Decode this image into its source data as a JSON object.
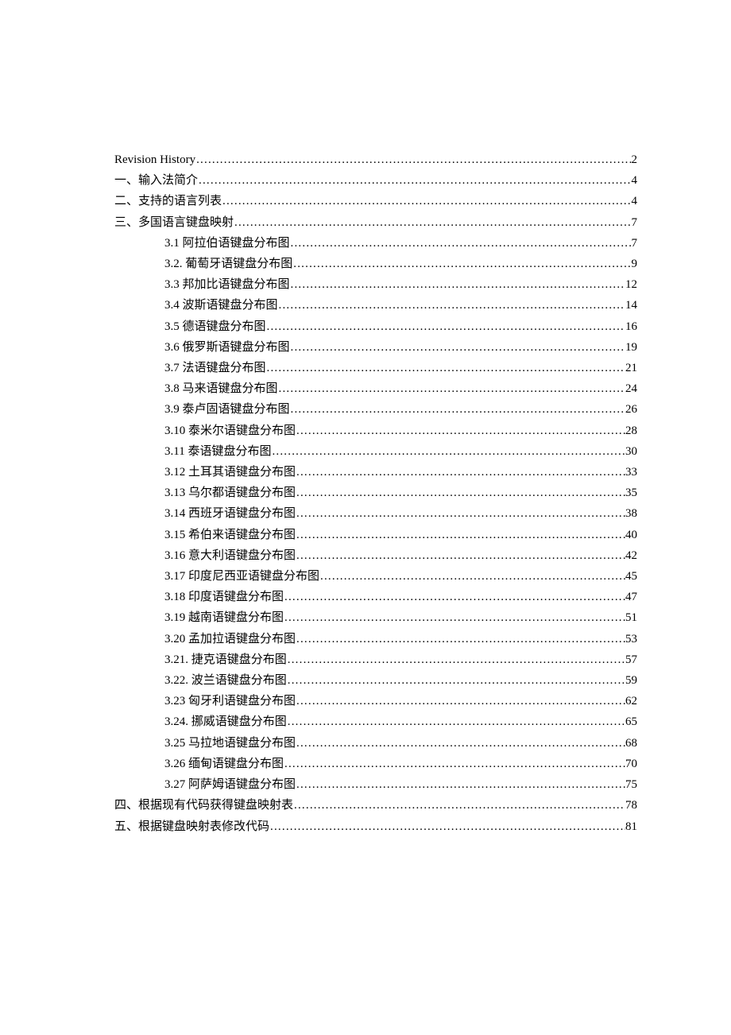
{
  "toc": [
    {
      "level": 1,
      "label": "Revision History ",
      "page": "2"
    },
    {
      "level": 1,
      "label": "一、输入法简介",
      "page": "4"
    },
    {
      "level": 1,
      "label": "二、支持的语言列表",
      "page": "4"
    },
    {
      "level": 1,
      "label": "三、多国语言键盘映射",
      "page": "7"
    },
    {
      "level": 2,
      "label": "3.1  阿拉伯语键盘分布图",
      "page": "7"
    },
    {
      "level": 2,
      "label": "3.2.  葡萄牙语键盘分布图",
      "page": "9"
    },
    {
      "level": 2,
      "label": "3.3 邦加比语键盘分布图",
      "page": "12"
    },
    {
      "level": 2,
      "label": "3.4 波斯语键盘分布图",
      "page": "14"
    },
    {
      "level": 2,
      "label": "3.5 德语键盘分布图",
      "page": "16"
    },
    {
      "level": 2,
      "label": "3.6 俄罗斯语键盘分布图",
      "page": "19"
    },
    {
      "level": 2,
      "label": "3.7  法语键盘分布图",
      "page": "21"
    },
    {
      "level": 2,
      "label": "3.8 马来语键盘分布图",
      "page": "24"
    },
    {
      "level": 2,
      "label": "3.9 泰卢固语键盘分布图",
      "page": "26"
    },
    {
      "level": 2,
      "label": "3.10 泰米尔语键盘分布图",
      "page": "28"
    },
    {
      "level": 2,
      "label": "3.11 泰语键盘分布图",
      "page": "30"
    },
    {
      "level": 2,
      "label": "3.12 土耳其语键盘分布图",
      "page": "33"
    },
    {
      "level": 2,
      "label": "3.13 乌尔都语键盘分布图",
      "page": "35"
    },
    {
      "level": 2,
      "label": "3.14 西班牙语键盘分布图",
      "page": "38"
    },
    {
      "level": 2,
      "label": "3.15 希伯来语键盘分布图",
      "page": "40"
    },
    {
      "level": 2,
      "label": "3.16 意大利语键盘分布图",
      "page": "42"
    },
    {
      "level": 2,
      "label": "3.17 印度尼西亚语键盘分布图",
      "page": "45"
    },
    {
      "level": 2,
      "label": "3.18 印度语键盘分布图",
      "page": "47"
    },
    {
      "level": 2,
      "label": "3.19 越南语键盘分布图",
      "page": "51"
    },
    {
      "level": 2,
      "label": "3.20 孟加拉语键盘分布图",
      "page": "53"
    },
    {
      "level": 2,
      "label": "3.21.  捷克语键盘分布图",
      "page": "57"
    },
    {
      "level": 2,
      "label": "3.22.  波兰语键盘分布图",
      "page": "59"
    },
    {
      "level": 2,
      "label": "3.23  匈牙利语键盘分布图",
      "page": "62"
    },
    {
      "level": 2,
      "label": "3.24.  挪威语键盘分布图",
      "page": "65"
    },
    {
      "level": 2,
      "label": "3.25  马拉地语键盘分布图",
      "page": "68"
    },
    {
      "level": 2,
      "label": "3.26  缅甸语键盘分布图",
      "page": "70"
    },
    {
      "level": 2,
      "label": "3.27  阿萨姆语键盘分布图",
      "page": "75"
    },
    {
      "level": 1,
      "label": "四、根据现有代码获得键盘映射表",
      "page": "78"
    },
    {
      "level": 1,
      "label": "五、根据键盘映射表修改代码",
      "page": "81"
    }
  ]
}
